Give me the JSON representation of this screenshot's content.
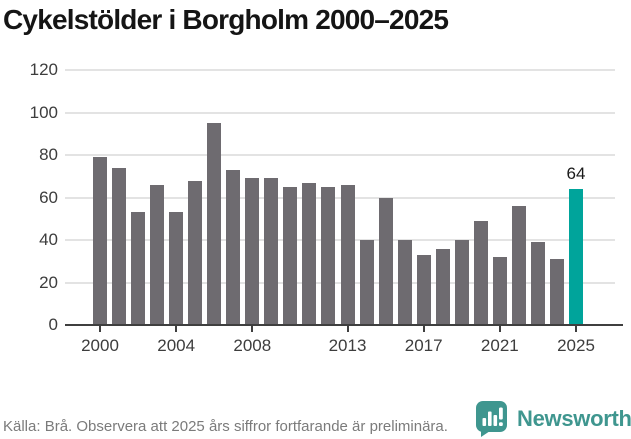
{
  "title": "Cykelstölder i Borgholm 2000–2025",
  "chart_data": {
    "type": "bar",
    "title": "Cykelstölder i Borgholm 2000–2025",
    "categories": [
      2000,
      2001,
      2002,
      2003,
      2004,
      2005,
      2006,
      2007,
      2008,
      2009,
      2010,
      2011,
      2012,
      2013,
      2014,
      2015,
      2016,
      2017,
      2018,
      2019,
      2020,
      2021,
      2022,
      2023,
      2024,
      2025
    ],
    "values": [
      79,
      74,
      53,
      66,
      53,
      68,
      95,
      73,
      69,
      69,
      65,
      67,
      65,
      66,
      40,
      60,
      40,
      33,
      36,
      40,
      49,
      32,
      56,
      39,
      31,
      64
    ],
    "xlabel": "",
    "ylabel": "",
    "ylim": [
      0,
      120
    ],
    "yticks": [
      0,
      20,
      40,
      60,
      80,
      100,
      120
    ],
    "xticks": [
      2000,
      2004,
      2008,
      2013,
      2017,
      2021,
      2025
    ],
    "grid": true,
    "legend": false,
    "bar_color": "#6e6b70",
    "highlight_index": 25,
    "highlight_color": "#00a49b",
    "value_labels": [
      {
        "index": 25,
        "text": "64"
      }
    ]
  },
  "footer": {
    "source_text": "Källa: Brå. Observera att 2025 års siffror fortfarande är preliminära."
  },
  "branding": {
    "logo_icon": "newsworthy-bubble-bar-chart-icon",
    "logo_text": "Newsworthy",
    "logo_color": "#3f968f"
  }
}
